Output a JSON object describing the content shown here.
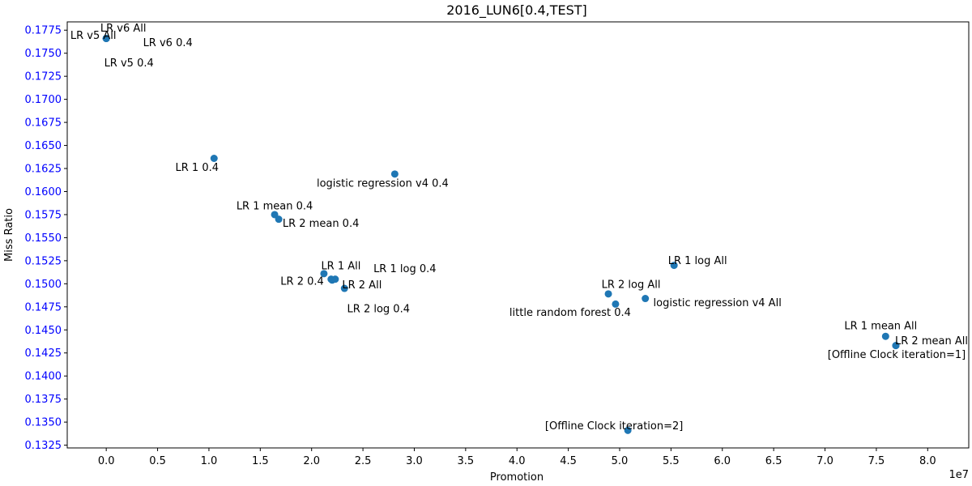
{
  "chart_data": {
    "type": "scatter",
    "title": "2016_LUN6[0.4,TEST]",
    "xlabel": "Promotion",
    "ylabel": "Miss Ratio",
    "x_offset_label": "1e7",
    "x_scale": 10000000,
    "xlim": [
      -3800000,
      84000000
    ],
    "ylim": [
      0.1322,
      0.1784
    ],
    "x_ticks": [
      "0.0",
      "0.5",
      "1.0",
      "1.5",
      "2.0",
      "2.5",
      "3.0",
      "3.5",
      "4.0",
      "4.5",
      "5.0",
      "5.5",
      "6.0",
      "6.5",
      "7.0",
      "7.5",
      "8.0"
    ],
    "y_ticks": [
      "0.1325",
      "0.1350",
      "0.1375",
      "0.1400",
      "0.1425",
      "0.1450",
      "0.1475",
      "0.1500",
      "0.1525",
      "0.1550",
      "0.1575",
      "0.1600",
      "0.1625",
      "0.1650",
      "0.1675",
      "0.1700",
      "0.1725",
      "0.1750",
      "0.1775"
    ],
    "grid": false,
    "point_color": "#1f77b4",
    "y_tick_color": "#0000ff",
    "points": [
      {
        "label": "LR v5 All",
        "x": 0,
        "y": 0.1766
      },
      {
        "label": "LR v6 All",
        "x": 0,
        "y": 0.1766
      },
      {
        "label": "LR v6 0.4",
        "x": 0,
        "y": 0.1766
      },
      {
        "label": "LR v5 0.4",
        "x": 0,
        "y": 0.1766
      },
      {
        "label": "LR 1 0.4",
        "x": 10500000,
        "y": 0.1636
      },
      {
        "label": "logistic regression v4 0.4",
        "x": 28100000,
        "y": 0.1619
      },
      {
        "label": "LR 1 mean 0.4",
        "x": 16400000,
        "y": 0.1575
      },
      {
        "label": "LR 2 mean 0.4",
        "x": 16800000,
        "y": 0.157
      },
      {
        "label": "LR 1 All",
        "x": 21200000,
        "y": 0.1511
      },
      {
        "label": "LR 1 log 0.4",
        "x": 21900000,
        "y": 0.1505
      },
      {
        "label": "LR 2 0.4",
        "x": 22000000,
        "y": 0.1504
      },
      {
        "label": "LR 2 All",
        "x": 22300000,
        "y": 0.1505
      },
      {
        "label": "LR 2 log 0.4",
        "x": 23200000,
        "y": 0.1495
      },
      {
        "label": "LR 1 log All",
        "x": 55300000,
        "y": 0.152
      },
      {
        "label": "LR 2 log All",
        "x": 48900000,
        "y": 0.1489
      },
      {
        "label": "little random forest 0.4",
        "x": 49600000,
        "y": 0.1478
      },
      {
        "label": "logistic regression v4 All",
        "x": 52500000,
        "y": 0.1484
      },
      {
        "label": "LR 1 mean All",
        "x": 75900000,
        "y": 0.1443
      },
      {
        "label": "LR 2 mean All",
        "x": 76900000,
        "y": 0.1433
      },
      {
        "label": "[Offline Clock iteration=1]",
        "x": 76900000,
        "y": 0.1433
      },
      {
        "label": "[Offline Clock iteration=2]",
        "x": 50800000,
        "y": 0.1341
      }
    ]
  }
}
